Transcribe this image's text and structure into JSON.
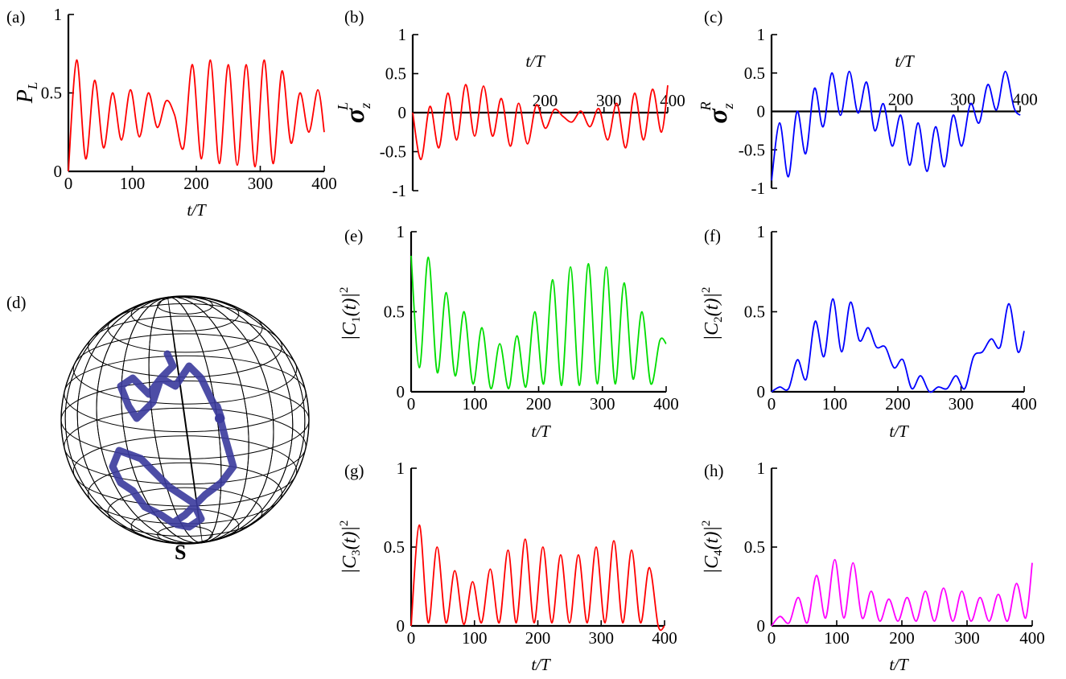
{
  "chart_data": [
    {
      "panel": "(a)",
      "type": "line",
      "xlabel_var": "t",
      "xlabel_unit": "T",
      "ylabel_main": "P",
      "ylabel_sub": "L",
      "xlim": [
        0,
        400
      ],
      "ylim": [
        0,
        1
      ],
      "xticks": [
        "0",
        "100",
        "200",
        "300",
        "400"
      ],
      "yticks": [
        "0",
        "0.5",
        "1"
      ],
      "color": "#ff0000",
      "x": [
        0,
        13,
        27,
        41,
        55,
        69,
        83,
        97,
        111,
        125,
        139,
        153,
        166,
        180,
        194,
        208,
        222,
        236,
        250,
        264,
        278,
        292,
        306,
        320,
        334,
        348,
        362,
        376,
        390,
        400
      ],
      "y": [
        0.0,
        0.71,
        0.08,
        0.58,
        0.15,
        0.5,
        0.2,
        0.52,
        0.22,
        0.5,
        0.28,
        0.45,
        0.36,
        0.15,
        0.68,
        0.08,
        0.71,
        0.05,
        0.68,
        0.04,
        0.68,
        0.03,
        0.71,
        0.05,
        0.64,
        0.18,
        0.5,
        0.25,
        0.52,
        0.25
      ]
    },
    {
      "panel": "(b)",
      "type": "line",
      "xlabel_var": "t",
      "xlabel_unit": "T",
      "ylabel_main": "σ",
      "ylabel_sub": "z",
      "ylabel_sup": "L",
      "xlim": [
        0,
        400
      ],
      "ylim": [
        -1,
        1
      ],
      "xticks": [
        "200",
        "300",
        "400"
      ],
      "yticks": [
        "-1",
        "-0.5",
        "0",
        "0.5",
        "1"
      ],
      "color": "#ff0000",
      "x": [
        0,
        13,
        27,
        41,
        55,
        69,
        83,
        97,
        111,
        125,
        139,
        153,
        166,
        180,
        194,
        208,
        222,
        236,
        250,
        264,
        278,
        292,
        306,
        320,
        334,
        348,
        362,
        376,
        390,
        400
      ],
      "y": [
        0.0,
        -0.6,
        0.08,
        -0.45,
        0.25,
        -0.35,
        0.36,
        -0.3,
        0.34,
        -0.3,
        0.18,
        -0.43,
        0.12,
        -0.4,
        0.1,
        -0.2,
        0.04,
        -0.05,
        -0.12,
        0.02,
        -0.18,
        0.05,
        -0.35,
        0.12,
        -0.45,
        0.25,
        -0.35,
        0.3,
        -0.25,
        0.35
      ]
    },
    {
      "panel": "(c)",
      "type": "line",
      "xlabel_var": "t",
      "xlabel_unit": "T",
      "ylabel_main": "σ",
      "ylabel_sub": "z",
      "ylabel_sup": "R",
      "xlim": [
        0,
        400
      ],
      "ylim": [
        -1,
        1
      ],
      "xticks": [
        "200",
        "300",
        "400"
      ],
      "yticks": [
        "-1",
        "-0.5",
        "0",
        "0.5",
        "1"
      ],
      "color": "#0000ff",
      "x": [
        0,
        13,
        27,
        41,
        55,
        69,
        83,
        97,
        111,
        125,
        139,
        153,
        166,
        180,
        194,
        208,
        222,
        236,
        250,
        264,
        278,
        292,
        306,
        320,
        334,
        348,
        362,
        376,
        390,
        400
      ],
      "y": [
        -0.9,
        -0.15,
        -0.85,
        0.0,
        -0.55,
        0.3,
        -0.2,
        0.5,
        -0.05,
        0.52,
        -0.02,
        0.38,
        -0.25,
        0.1,
        -0.45,
        -0.05,
        -0.7,
        -0.15,
        -0.78,
        -0.2,
        -0.72,
        -0.05,
        -0.45,
        0.1,
        -0.15,
        0.35,
        0.02,
        0.52,
        0.05,
        -0.05
      ]
    },
    {
      "panel": "(e)",
      "type": "line",
      "xlabel_var": "t",
      "xlabel_unit": "T",
      "ylabel_main": "|C",
      "ylabel_sub": "1",
      "ylabel_tail": "(t)|",
      "ylabel_sup": "2",
      "xlim": [
        0,
        400
      ],
      "ylim": [
        0,
        1
      ],
      "xticks": [
        "0",
        "100",
        "200",
        "300",
        "400"
      ],
      "yticks": [
        "0",
        "0.5",
        "1"
      ],
      "color": "#00dd00",
      "x": [
        0,
        13,
        27,
        41,
        55,
        69,
        83,
        97,
        111,
        125,
        139,
        153,
        166,
        180,
        194,
        208,
        222,
        236,
        250,
        264,
        278,
        292,
        306,
        320,
        334,
        348,
        362,
        376,
        390,
        400
      ],
      "y": [
        0.85,
        0.15,
        0.84,
        0.12,
        0.62,
        0.1,
        0.5,
        0.05,
        0.4,
        0.02,
        0.3,
        0.02,
        0.35,
        0.03,
        0.5,
        0.05,
        0.7,
        0.04,
        0.78,
        0.04,
        0.8,
        0.05,
        0.78,
        0.05,
        0.68,
        0.08,
        0.5,
        0.05,
        0.32,
        0.3
      ]
    },
    {
      "panel": "(f)",
      "type": "line",
      "xlabel_var": "t",
      "xlabel_unit": "T",
      "ylabel_main": "|C",
      "ylabel_sub": "2",
      "ylabel_tail": "(t)|",
      "ylabel_sup": "2",
      "xlim": [
        0,
        400
      ],
      "ylim": [
        0,
        1
      ],
      "xticks": [
        "0",
        "100",
        "200",
        "300",
        "400"
      ],
      "yticks": [
        "0",
        "0.5",
        "1"
      ],
      "color": "#0000ff",
      "x": [
        0,
        13,
        27,
        41,
        55,
        69,
        83,
        97,
        111,
        125,
        139,
        153,
        166,
        180,
        194,
        208,
        222,
        236,
        250,
        264,
        278,
        292,
        306,
        320,
        334,
        348,
        362,
        376,
        390,
        400
      ],
      "y": [
        0.0,
        0.03,
        0.02,
        0.2,
        0.08,
        0.44,
        0.22,
        0.58,
        0.25,
        0.56,
        0.32,
        0.4,
        0.28,
        0.28,
        0.15,
        0.2,
        0.02,
        0.1,
        0.0,
        0.03,
        0.02,
        0.1,
        0.02,
        0.22,
        0.25,
        0.33,
        0.28,
        0.55,
        0.25,
        0.38
      ]
    },
    {
      "panel": "(g)",
      "type": "line",
      "xlabel_var": "t",
      "xlabel_unit": "T",
      "ylabel_main": "|C",
      "ylabel_sub": "3",
      "ylabel_tail": "(t)|",
      "ylabel_sup": "2",
      "xlim": [
        0,
        400
      ],
      "ylim": [
        0,
        1
      ],
      "xticks": [
        "0",
        "100",
        "200",
        "300",
        "400"
      ],
      "yticks": [
        "0",
        "0.5",
        "1"
      ],
      "color": "#ff0000",
      "x": [
        0,
        13,
        27,
        41,
        55,
        69,
        83,
        97,
        111,
        125,
        139,
        153,
        166,
        180,
        194,
        208,
        222,
        236,
        250,
        264,
        278,
        292,
        306,
        320,
        334,
        348,
        362,
        376,
        390,
        400
      ],
      "y": [
        0.0,
        0.64,
        0.02,
        0.5,
        0.02,
        0.35,
        0.01,
        0.28,
        0.02,
        0.36,
        0.02,
        0.48,
        0.02,
        0.55,
        0.02,
        0.5,
        0.02,
        0.45,
        0.02,
        0.45,
        0.02,
        0.5,
        0.02,
        0.54,
        0.02,
        0.48,
        0.02,
        0.37,
        0.0,
        0.0
      ]
    },
    {
      "panel": "(h)",
      "type": "line",
      "xlabel_var": "t",
      "xlabel_unit": "T",
      "ylabel_main": "|C",
      "ylabel_sub": "4",
      "ylabel_tail": "(t)|",
      "ylabel_sup": "2",
      "xlim": [
        0,
        400
      ],
      "ylim": [
        0,
        1
      ],
      "xticks": [
        "0",
        "100",
        "200",
        "300",
        "400"
      ],
      "yticks": [
        "0",
        "0.5",
        "1"
      ],
      "color": "#ff00ff",
      "x": [
        0,
        13,
        27,
        41,
        55,
        69,
        83,
        97,
        111,
        125,
        139,
        153,
        166,
        180,
        194,
        208,
        222,
        236,
        250,
        264,
        278,
        292,
        306,
        320,
        334,
        348,
        362,
        376,
        390,
        400
      ],
      "y": [
        0.0,
        0.06,
        0.02,
        0.18,
        0.02,
        0.32,
        0.05,
        0.42,
        0.05,
        0.4,
        0.05,
        0.22,
        0.03,
        0.17,
        0.03,
        0.18,
        0.03,
        0.22,
        0.03,
        0.24,
        0.03,
        0.22,
        0.03,
        0.18,
        0.03,
        0.2,
        0.03,
        0.27,
        0.05,
        0.4
      ]
    }
  ],
  "panel_d": {
    "label": "(d)",
    "marker_label": "S",
    "trace_color": "#3a3a9c"
  }
}
